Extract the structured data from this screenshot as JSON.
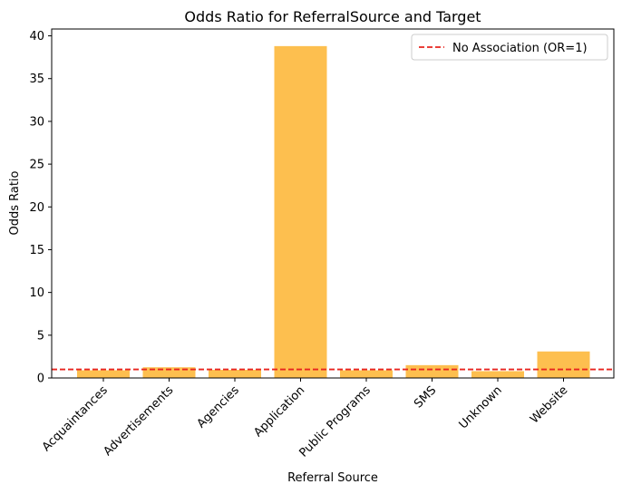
{
  "chart_data": {
    "type": "bar",
    "title": "Odds Ratio for ReferralSource and Target",
    "xlabel": "Referral Source",
    "ylabel": "Odds Ratio",
    "categories": [
      "Acquaintances",
      "Advertisements",
      "Agencies",
      "Application",
      "Public Programs",
      "SMS",
      "Unknown",
      "Website"
    ],
    "values": [
      0.9,
      1.25,
      0.95,
      38.8,
      0.9,
      1.5,
      0.8,
      3.1
    ],
    "ylim": [
      0,
      40.8
    ],
    "yticks": [
      0,
      5,
      10,
      15,
      20,
      25,
      30,
      35,
      40
    ],
    "bar_color": "#fdbf4f",
    "reference_line": {
      "value": 1,
      "color": "#e8251f",
      "style": "dashed",
      "label": "No Association (OR=1)"
    },
    "legend": {
      "position": "top-right",
      "entries": [
        "No Association (OR=1)"
      ]
    },
    "grid": false
  }
}
